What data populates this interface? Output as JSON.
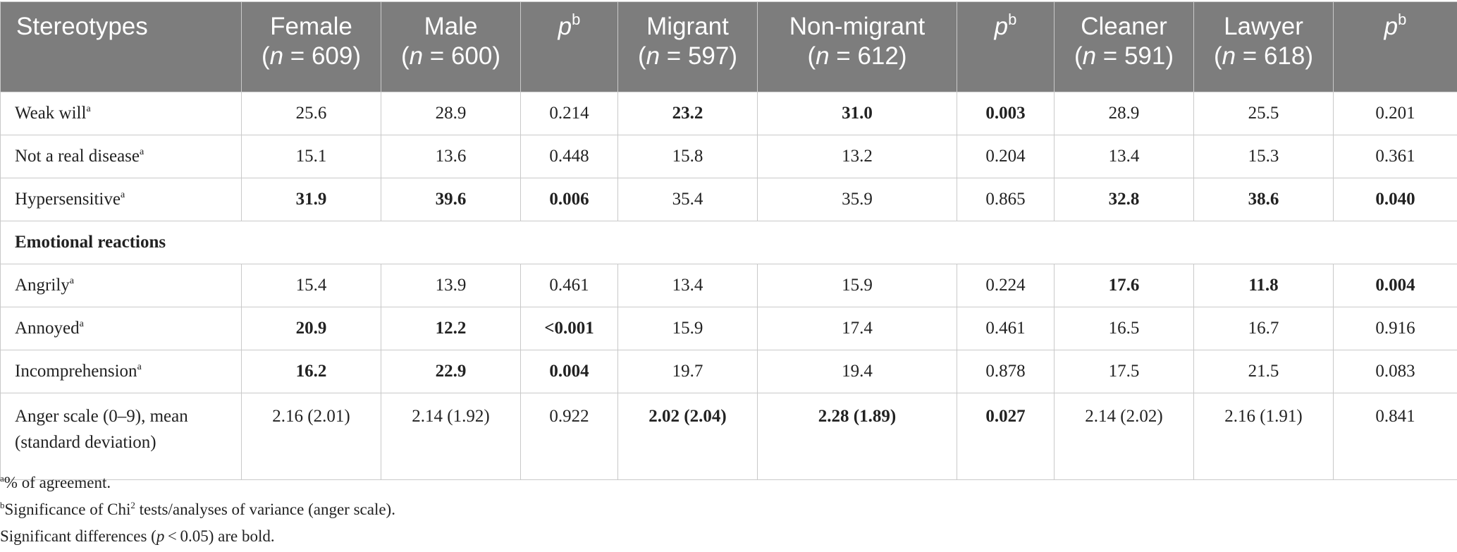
{
  "table": {
    "headers": [
      {
        "label": "Stereotypes"
      },
      {
        "label": "Female",
        "n": "609"
      },
      {
        "label": "Male",
        "n": "600"
      },
      {
        "p": "p",
        "sup": "b"
      },
      {
        "label": "Migrant",
        "n": "597"
      },
      {
        "label": "Non-migrant",
        "n": "612"
      },
      {
        "p": "p",
        "sup": "b"
      },
      {
        "label": "Cleaner",
        "n": "591"
      },
      {
        "label": "Lawyer",
        "n": "618"
      },
      {
        "p": "p",
        "sup": "b"
      }
    ],
    "n_prefix": "n",
    "n_eq": " = ",
    "rows": [
      {
        "label": "Weak will",
        "sup": "a",
        "cells": [
          "25.6",
          "28.9",
          "0.214",
          "23.2",
          "31.0",
          "0.003",
          "28.9",
          "25.5",
          "0.201"
        ]
      },
      {
        "label": "Not a real disease",
        "sup": "a",
        "cells": [
          "15.1",
          "13.6",
          "0.448",
          "15.8",
          "13.2",
          "0.204",
          "13.4",
          "15.3",
          "0.361"
        ]
      },
      {
        "label": "Hypersensitive",
        "sup": "a",
        "cells": [
          "31.9",
          "39.6",
          "0.006",
          "35.4",
          "35.9",
          "0.865",
          "32.8",
          "38.6",
          "0.040"
        ]
      },
      {
        "section": "Emotional reactions"
      },
      {
        "label": "Angrily",
        "sup": "a",
        "cells": [
          "15.4",
          "13.9",
          "0.461",
          "13.4",
          "15.9",
          "0.224",
          "17.6",
          "11.8",
          "0.004"
        ]
      },
      {
        "label": "Annoyed",
        "sup": "a",
        "cells": [
          "20.9",
          "12.2",
          "<0.001",
          "15.9",
          "17.4",
          "0.461",
          "16.5",
          "16.7",
          "0.916"
        ]
      },
      {
        "label": "Incomprehension",
        "sup": "a",
        "cells": [
          "16.2",
          "22.9",
          "0.004",
          "19.7",
          "19.4",
          "0.878",
          "17.5",
          "21.5",
          "0.083"
        ]
      },
      {
        "label": "Anger scale (0–9), mean (standard deviation)",
        "cells": [
          "2.16 (2.01)",
          "2.14 (1.92)",
          "0.922",
          "2.02 (2.04)",
          "2.28 (1.89)",
          "0.027",
          "2.14 (2.02)",
          "2.16 (1.91)",
          "0.841"
        ]
      }
    ]
  },
  "footnotes": {
    "a_mark": "a",
    "a_text": "% of agreement.",
    "b_mark": "b",
    "b_text_1": "Significance of Chi",
    "b_sup": "2",
    "b_text_2": " tests/analyses of variance (anger scale).",
    "c_text_1": "Significant differences (",
    "c_italic": "p",
    "c_text_2": " < 0.05) are bold."
  }
}
